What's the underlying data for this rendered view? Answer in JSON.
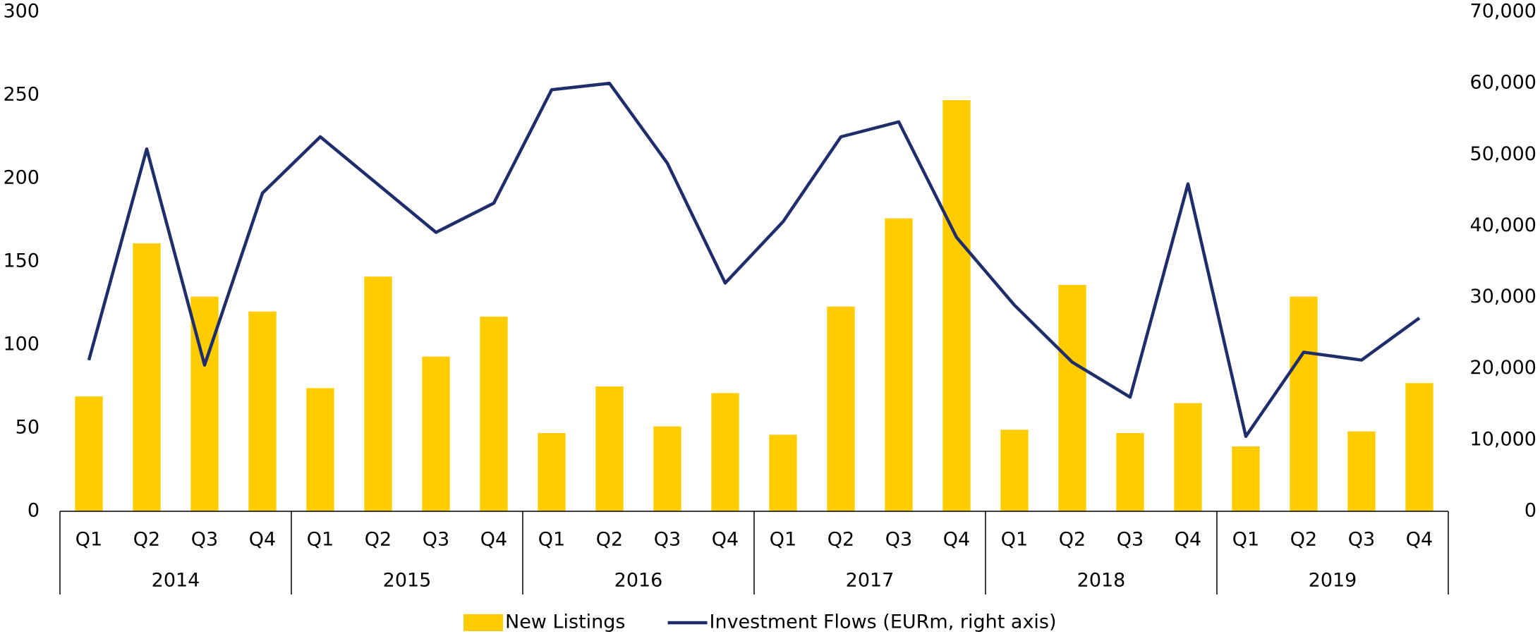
{
  "chart_data": {
    "type": "bar",
    "categories": [
      "Q1",
      "Q2",
      "Q3",
      "Q4",
      "Q1",
      "Q2",
      "Q3",
      "Q4",
      "Q1",
      "Q2",
      "Q3",
      "Q4",
      "Q1",
      "Q2",
      "Q3",
      "Q4",
      "Q1",
      "Q2",
      "Q3",
      "Q4",
      "Q1",
      "Q2",
      "Q3",
      "Q4"
    ],
    "groups": [
      "2014",
      "2015",
      "2016",
      "2017",
      "2018",
      "2019"
    ],
    "series": [
      {
        "name": "New Listings",
        "color": "#ffcc00",
        "type": "bar",
        "values": [
          69,
          161,
          129,
          120,
          74,
          141,
          93,
          117,
          47,
          75,
          51,
          71,
          46,
          123,
          176,
          247,
          49,
          136,
          47,
          65,
          39,
          129,
          48,
          77
        ]
      },
      {
        "name": "Investment Flows (EURm, right axis)",
        "color": "#1f2d6b",
        "type": "line",
        "axis": "y2",
        "values": [
          21200,
          50800,
          20500,
          44600,
          52500,
          45800,
          39100,
          43200,
          59100,
          60000,
          48800,
          32000,
          40600,
          52500,
          54600,
          38400,
          28900,
          20900,
          16000,
          45900,
          10500,
          22300,
          21200,
          27100
        ]
      }
    ],
    "ylim": [
      0,
      300
    ],
    "yticks": [
      0,
      50,
      100,
      150,
      200,
      250,
      300
    ],
    "y2lim": [
      0,
      70000
    ],
    "y2ticks": [
      0,
      {
        "value": 10000,
        "label": "10,000"
      },
      {
        "value": 20000,
        "label": "20,000"
      },
      {
        "value": 30000,
        "label": "30,000"
      },
      {
        "value": 40000,
        "label": "40,000"
      },
      {
        "value": 50000,
        "label": "50,000"
      },
      {
        "value": 60000,
        "label": "60,000"
      },
      {
        "value": 70000,
        "label": "70,000"
      }
    ],
    "legend": "bottom"
  }
}
